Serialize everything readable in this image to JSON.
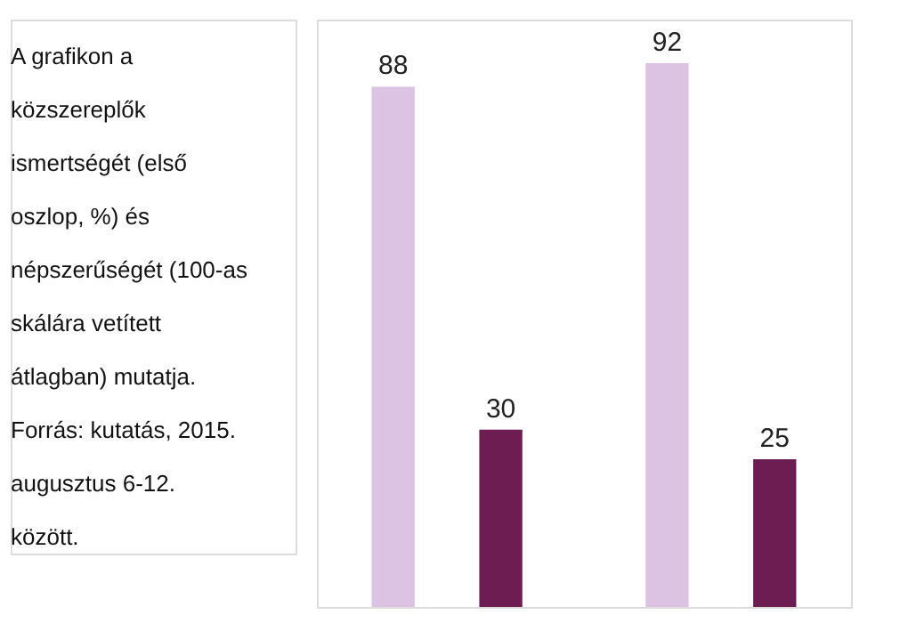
{
  "chart_data": {
    "type": "bar",
    "categories": [
      null,
      null
    ],
    "series": [
      {
        "color": "#dcc3e3",
        "values": [
          88,
          92
        ]
      },
      {
        "color": "#6e1d52",
        "values": [
          30,
          25
        ]
      }
    ],
    "data_labels": true,
    "annotations": [
      "A grafikon a közszereplők ismertségét (első oszlop, %) és népszerűségét (100-as skálára vetített átlagban) mutatja.",
      "Forrás: kutatás, 2015. augusztus 6-12. között."
    ]
  }
}
